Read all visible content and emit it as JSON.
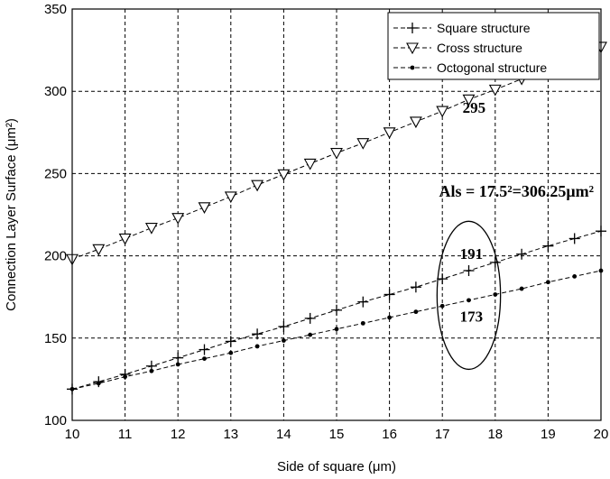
{
  "chart_data": {
    "type": "line",
    "title": "",
    "xlabel": "Side of square  (μm)",
    "ylabel": "Connection Layer Surface (μm²)",
    "xlim": [
      10,
      20
    ],
    "ylim": [
      100,
      350
    ],
    "xticks": [
      "10",
      "11",
      "12",
      "13",
      "14",
      "15",
      "16",
      "17",
      "18",
      "19",
      "20"
    ],
    "yticks": [
      "100",
      "150",
      "200",
      "250",
      "300",
      "350"
    ],
    "grid": true,
    "legend_position": "top-right",
    "x": [
      10,
      10.5,
      11,
      11.5,
      12,
      12.5,
      13,
      13.5,
      14,
      14.5,
      15,
      15.5,
      16,
      16.5,
      17,
      17.5,
      18,
      18.5,
      19,
      19.5,
      20
    ],
    "series": [
      {
        "name": "Square structure",
        "marker": "plus",
        "values": [
          119,
          123.5,
          128,
          133,
          138,
          143,
          148,
          152.5,
          157,
          162,
          167,
          172,
          176.5,
          181,
          186,
          191,
          196,
          201,
          206,
          210.5,
          215
        ]
      },
      {
        "name": "Cross structure",
        "marker": "triangle-down",
        "values": [
          198,
          204,
          210.5,
          217,
          223,
          229.5,
          236,
          243,
          249.5,
          256,
          262.5,
          268.5,
          275,
          281.5,
          288,
          295,
          301,
          307.5,
          314,
          320.5,
          327
        ]
      },
      {
        "name": "Octogonal structure",
        "marker": "dot",
        "values": [
          119,
          122.5,
          126.5,
          130,
          134,
          137.5,
          141,
          145,
          148.5,
          152,
          155.5,
          159,
          162.5,
          166,
          169.5,
          173,
          176.5,
          180,
          184,
          187.5,
          191
        ]
      }
    ],
    "annotations": [
      {
        "text": "295",
        "x": 17.6,
        "y": 287
      },
      {
        "text": "Als = 17.5²=306.25μm²",
        "x": 18.4,
        "y": 236
      },
      {
        "text": "191",
        "x": 17.55,
        "y": 198
      },
      {
        "text": "173",
        "x": 17.55,
        "y": 160
      }
    ],
    "ellipse": {
      "cx": 17.5,
      "cy": 176,
      "rx": 0.6,
      "ry": 45
    }
  }
}
